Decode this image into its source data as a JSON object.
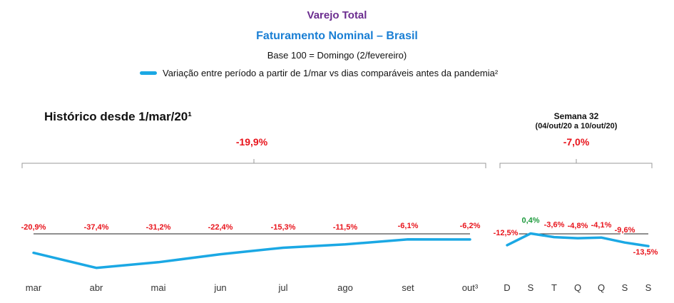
{
  "header": {
    "title": "Varejo Total",
    "subtitle": "Faturamento Nominal – Brasil",
    "base": "Base 100 = Domingo (2/fevereiro)",
    "legend": "Variação entre período a partir de 1/mar vs dias comparáveis antes da pandemia²"
  },
  "colors": {
    "title": "#6b2d8f",
    "subtitle": "#1a7fd4",
    "series": "#1ba8e4",
    "negative": "#e8141c",
    "positive": "#1c9a3c",
    "baseline": "#222222",
    "axis_text": "#333333"
  },
  "panels": {
    "history_title": "Histórico desde 1/mar/20¹",
    "history_total": "-19,9%",
    "week_title": "Semana 32",
    "week_range": "(04/out/20 a 10/out/20)",
    "week_total": "-7,0%"
  },
  "chart_data": [
    {
      "type": "line",
      "title": "Histórico desde 1/mar/20¹",
      "categories": [
        "mar",
        "abr",
        "mai",
        "jun",
        "jul",
        "ago",
        "set",
        "out³"
      ],
      "series": [
        {
          "values": [
            -20.9,
            -37.4,
            -31.2,
            -22.4,
            -15.3,
            -11.5,
            -6.1,
            -6.2
          ]
        }
      ],
      "data_labels": [
        "-20,9%",
        "-37,4%",
        "-31,2%",
        "-22,4%",
        "-15,3%",
        "-11,5%",
        "-6,1%",
        "-6,2%"
      ],
      "summary_label": "-19,9%",
      "baseline": 0,
      "ylim": [
        -40,
        0
      ]
    },
    {
      "type": "line",
      "title": "Semana 32",
      "categories": [
        "D",
        "S",
        "T",
        "Q",
        "Q",
        "S",
        "S"
      ],
      "series": [
        {
          "values": [
            -12.5,
            0.4,
            -3.6,
            -4.8,
            -4.1,
            -9.6,
            -13.5
          ]
        }
      ],
      "data_labels": [
        "-12,5%",
        "0,4%",
        "-3,6%",
        "-4,8%",
        "-4,1%",
        "-9,6%",
        "-13,5%"
      ],
      "summary_label": "-7,0%",
      "baseline": 0,
      "ylim": [
        -40,
        0
      ]
    }
  ]
}
